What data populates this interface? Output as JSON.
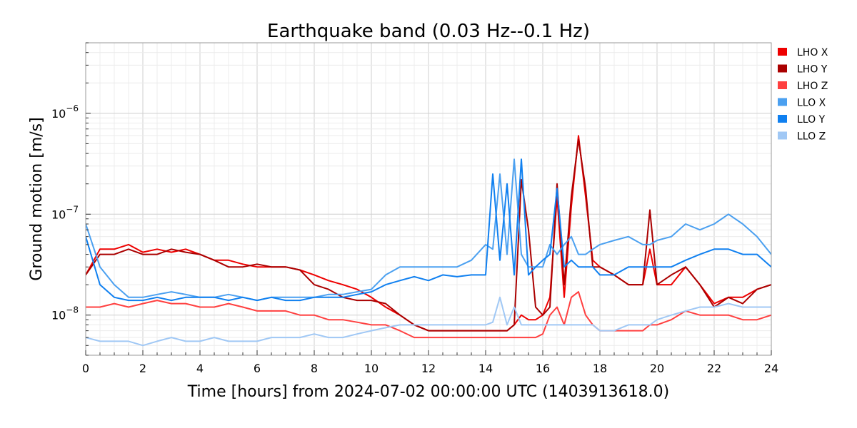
{
  "chart_data": {
    "type": "line",
    "title": "Earthquake band (0.03 Hz--0.1 Hz)",
    "xlabel": "Time [hours] from 2024-07-02 00:00:00 UTC (1403913618.0)",
    "ylabel": "Ground motion [m/s]",
    "xlim": [
      0,
      24
    ],
    "ylim": [
      4e-09,
      5e-06
    ],
    "yscale": "log",
    "grid": true,
    "legend": "right",
    "x_ticks": [
      {
        "value": 0,
        "label": "0"
      },
      {
        "value": 2,
        "label": "2"
      },
      {
        "value": 4,
        "label": "4"
      },
      {
        "value": 6,
        "label": "6"
      },
      {
        "value": 8,
        "label": "8"
      },
      {
        "value": 10,
        "label": "10"
      },
      {
        "value": 12,
        "label": "12"
      },
      {
        "value": 14,
        "label": "14"
      },
      {
        "value": 16,
        "label": "16"
      },
      {
        "value": 18,
        "label": "18"
      },
      {
        "value": 20,
        "label": "20"
      },
      {
        "value": 22,
        "label": "22"
      },
      {
        "value": 24,
        "label": "24"
      }
    ],
    "y_ticks": [
      {
        "value": 1e-08,
        "base": "10",
        "exp": "−8"
      },
      {
        "value": 1e-07,
        "base": "10",
        "exp": "−7"
      },
      {
        "value": 1e-06,
        "base": "10",
        "exp": "−6"
      }
    ],
    "x": [
      0,
      0.5,
      1,
      1.5,
      2,
      2.5,
      3,
      3.5,
      4,
      4.5,
      5,
      5.5,
      6,
      6.5,
      7,
      7.5,
      8,
      8.5,
      9,
      9.5,
      10,
      10.5,
      11,
      11.5,
      12,
      12.5,
      13,
      13.5,
      14,
      14.25,
      14.5,
      14.75,
      15,
      15.25,
      15.5,
      15.75,
      16,
      16.25,
      16.5,
      16.75,
      17,
      17.25,
      17.5,
      17.75,
      18,
      18.5,
      19,
      19.5,
      19.75,
      20,
      20.5,
      21,
      21.5,
      22,
      22.5,
      23,
      23.5,
      24
    ],
    "series": [
      {
        "name": "LHO X",
        "color": "#ee0000",
        "values": [
          2.5e-08,
          4.5e-08,
          4.5e-08,
          5e-08,
          4.2e-08,
          4.5e-08,
          4.2e-08,
          4.5e-08,
          4e-08,
          3.5e-08,
          3.5e-08,
          3.2e-08,
          3e-08,
          3e-08,
          3e-08,
          2.8e-08,
          2.5e-08,
          2.2e-08,
          2e-08,
          1.8e-08,
          1.5e-08,
          1.2e-08,
          1e-08,
          8e-09,
          7e-09,
          7e-09,
          7e-09,
          7e-09,
          7e-09,
          7e-09,
          7e-09,
          7e-09,
          8e-09,
          1e-08,
          9e-09,
          9e-09,
          1e-08,
          1.5e-08,
          1.5e-07,
          1.5e-08,
          1.2e-07,
          6e-07,
          1.5e-07,
          3.5e-08,
          3e-08,
          2.5e-08,
          2e-08,
          2e-08,
          4.5e-08,
          2e-08,
          2e-08,
          3e-08,
          2e-08,
          1.3e-08,
          1.5e-08,
          1.5e-08,
          1.8e-08,
          2e-08
        ]
      },
      {
        "name": "LHO Y",
        "color": "#aa0000",
        "values": [
          2.5e-08,
          4e-08,
          4e-08,
          4.5e-08,
          4e-08,
          4e-08,
          4.5e-08,
          4.2e-08,
          4e-08,
          3.5e-08,
          3e-08,
          3e-08,
          3.2e-08,
          3e-08,
          3e-08,
          2.8e-08,
          2e-08,
          1.8e-08,
          1.5e-08,
          1.4e-08,
          1.4e-08,
          1.3e-08,
          1e-08,
          8e-09,
          7e-09,
          7e-09,
          7e-09,
          7e-09,
          7e-09,
          7e-09,
          7e-09,
          7e-09,
          8e-09,
          2.2e-07,
          7e-08,
          1.2e-08,
          1e-08,
          1.2e-08,
          2e-07,
          2e-08,
          1.5e-07,
          5.5e-07,
          1.8e-07,
          3e-08,
          3e-08,
          2.5e-08,
          2e-08,
          2e-08,
          1.1e-07,
          2e-08,
          2.5e-08,
          3e-08,
          2e-08,
          1.2e-08,
          1.5e-08,
          1.3e-08,
          1.8e-08,
          2e-08
        ]
      },
      {
        "name": "LHO Z",
        "color": "#ff4040",
        "values": [
          1.2e-08,
          1.2e-08,
          1.3e-08,
          1.2e-08,
          1.3e-08,
          1.4e-08,
          1.3e-08,
          1.3e-08,
          1.2e-08,
          1.2e-08,
          1.3e-08,
          1.2e-08,
          1.1e-08,
          1.1e-08,
          1.1e-08,
          1e-08,
          1e-08,
          9e-09,
          9e-09,
          8.5e-09,
          8e-09,
          8e-09,
          7e-09,
          6e-09,
          6e-09,
          6e-09,
          6e-09,
          6e-09,
          6e-09,
          6e-09,
          6e-09,
          6e-09,
          6e-09,
          6e-09,
          6e-09,
          6e-09,
          6.5e-09,
          1e-08,
          1.2e-08,
          8e-09,
          1.5e-08,
          1.7e-08,
          1e-08,
          8e-09,
          7e-09,
          7e-09,
          7e-09,
          7e-09,
          8e-09,
          8e-09,
          9e-09,
          1.1e-08,
          1e-08,
          1e-08,
          1e-08,
          9e-09,
          9e-09,
          1e-08
        ]
      },
      {
        "name": "LLO X",
        "color": "#4ba0f0",
        "values": [
          8e-08,
          3e-08,
          2e-08,
          1.5e-08,
          1.5e-08,
          1.6e-08,
          1.7e-08,
          1.6e-08,
          1.5e-08,
          1.5e-08,
          1.6e-08,
          1.5e-08,
          1.4e-08,
          1.5e-08,
          1.5e-08,
          1.5e-08,
          1.5e-08,
          1.6e-08,
          1.6e-08,
          1.7e-08,
          1.8e-08,
          2.5e-08,
          3e-08,
          3e-08,
          3e-08,
          3e-08,
          3e-08,
          3.5e-08,
          5e-08,
          4.5e-08,
          2.5e-07,
          4e-08,
          3.5e-07,
          4e-08,
          3e-08,
          3e-08,
          3e-08,
          5e-08,
          4e-08,
          5e-08,
          6e-08,
          4e-08,
          4e-08,
          4.5e-08,
          5e-08,
          5.5e-08,
          6e-08,
          5e-08,
          5e-08,
          5.5e-08,
          6e-08,
          8e-08,
          7e-08,
          8e-08,
          1e-07,
          8e-08,
          6e-08,
          4e-08
        ]
      },
      {
        "name": "LLO Y",
        "color": "#1080f0",
        "values": [
          6e-08,
          2e-08,
          1.5e-08,
          1.4e-08,
          1.4e-08,
          1.5e-08,
          1.4e-08,
          1.5e-08,
          1.5e-08,
          1.5e-08,
          1.4e-08,
          1.5e-08,
          1.4e-08,
          1.5e-08,
          1.4e-08,
          1.4e-08,
          1.5e-08,
          1.5e-08,
          1.5e-08,
          1.6e-08,
          1.7e-08,
          2e-08,
          2.2e-08,
          2.4e-08,
          2.2e-08,
          2.5e-08,
          2.4e-08,
          2.5e-08,
          2.5e-08,
          2.5e-07,
          3.5e-08,
          2e-07,
          2.5e-08,
          3.5e-07,
          2.5e-08,
          3e-08,
          3.5e-08,
          4e-08,
          1.8e-07,
          3e-08,
          3.5e-08,
          3e-08,
          3e-08,
          3e-08,
          2.5e-08,
          2.5e-08,
          3e-08,
          3e-08,
          3e-08,
          3e-08,
          3e-08,
          3.5e-08,
          4e-08,
          4.5e-08,
          4.5e-08,
          4e-08,
          4e-08,
          3e-08
        ]
      },
      {
        "name": "LLO Z",
        "color": "#a0c8f5",
        "values": [
          6e-09,
          5.5e-09,
          5.5e-09,
          5.5e-09,
          5e-09,
          5.5e-09,
          6e-09,
          5.5e-09,
          5.5e-09,
          6e-09,
          5.5e-09,
          5.5e-09,
          5.5e-09,
          6e-09,
          6e-09,
          6e-09,
          6.5e-09,
          6e-09,
          6e-09,
          6.5e-09,
          7e-09,
          7.5e-09,
          8e-09,
          8e-09,
          8e-09,
          8e-09,
          8e-09,
          8e-09,
          8e-09,
          8.5e-09,
          1.5e-08,
          8e-09,
          1.2e-08,
          8e-09,
          8e-09,
          8e-09,
          8e-09,
          8e-09,
          8e-09,
          8e-09,
          8e-09,
          8e-09,
          8e-09,
          8e-09,
          7e-09,
          7e-09,
          8e-09,
          8e-09,
          8e-09,
          9e-09,
          1e-08,
          1.1e-08,
          1.2e-08,
          1.2e-08,
          1.3e-08,
          1.2e-08,
          1.2e-08,
          1.2e-08
        ]
      }
    ]
  }
}
